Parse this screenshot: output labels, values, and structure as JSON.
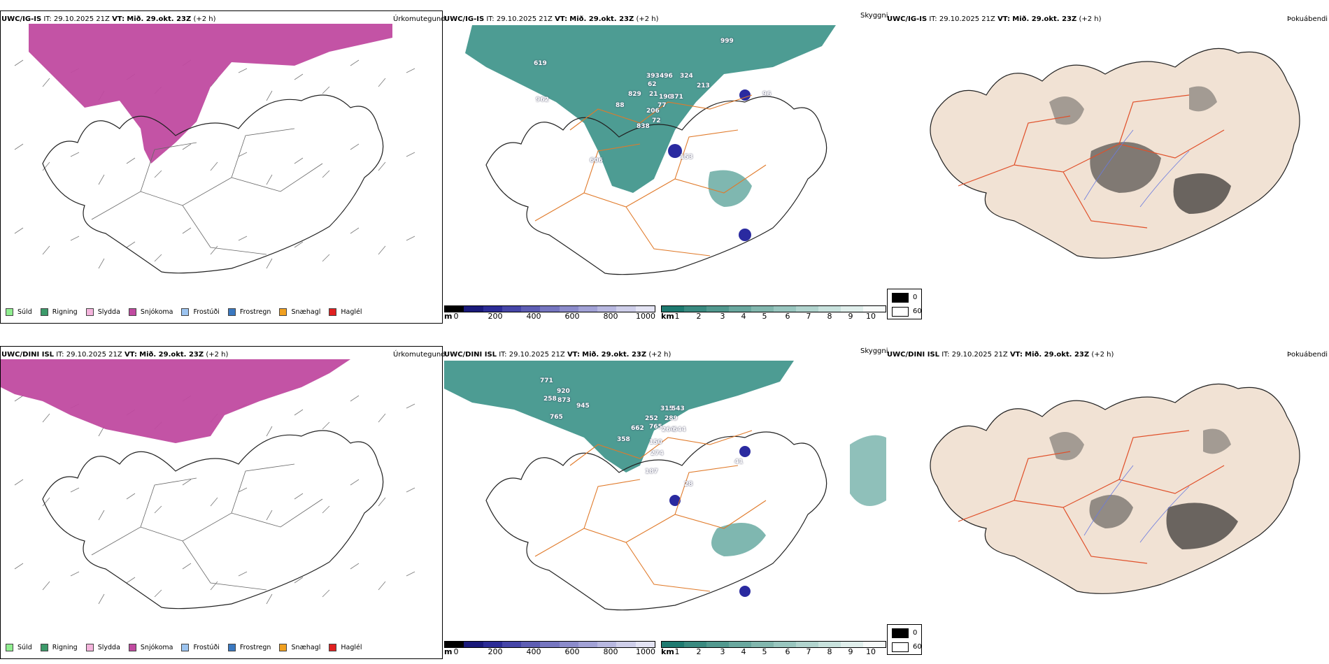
{
  "rows": [
    {
      "id": "ig",
      "model_label": "UWC/IG-IS",
      "it_label": "IT:",
      "it_value": "29.10.2025 21Z",
      "vt_label": "VT:",
      "vt_value": "Mið. 29.okt. 23Z",
      "lead": "(+2 h)",
      "precip_label": "Úrkomutegund",
      "vis_label": "Skyggni",
      "fog_label": "Þokuábendi",
      "vis_numbers": [
        "999",
        "619",
        "962",
        "829",
        "393",
        "496",
        "324",
        "62",
        "88",
        "21",
        "190",
        "371",
        "77",
        "206",
        "838",
        "72",
        "213",
        "96",
        "606",
        "153"
      ]
    },
    {
      "id": "dini",
      "model_label": "UWC/DINI ISL",
      "it_label": "IT:",
      "it_value": "29.10.2025 21Z",
      "vt_label": "VT:",
      "vt_value": "Mið. 29.okt. 23Z",
      "lead": "(+2 h)",
      "precip_label": "Úrkomutegund",
      "vis_label": "Skyggni",
      "fog_label": "Þokuábendi",
      "vis_numbers": [
        "771",
        "920",
        "258",
        "873",
        "945",
        "765",
        "315",
        "543",
        "252",
        "289",
        "662",
        "765",
        "264",
        "644",
        "358",
        "150",
        "274",
        "187",
        "28",
        "41"
      ]
    }
  ],
  "precip_legend": [
    {
      "label": "Súld",
      "color": "#90ee90"
    },
    {
      "label": "Rigning",
      "color": "#3c9a6a"
    },
    {
      "label": "Slydda",
      "color": "#f4b4dc"
    },
    {
      "label": "Snjókoma",
      "color": "#c04aa0"
    },
    {
      "label": "Frostúði",
      "color": "#9cc4f0"
    },
    {
      "label": "Frostregn",
      "color": "#3a78c0"
    },
    {
      "label": "Snæhagl",
      "color": "#f0a020"
    },
    {
      "label": "Haglél",
      "color": "#e02020"
    }
  ],
  "height_scale": {
    "unit": "m",
    "ticks": [
      "0",
      "200",
      "400",
      "600",
      "800",
      "1000"
    ],
    "colors": [
      "#000000",
      "#1a1a7a",
      "#2c2c96",
      "#4646a8",
      "#5e5eb4",
      "#7676c0",
      "#8c8ccb",
      "#a2a2d6",
      "#b8b8e0",
      "#cfcfea",
      "#e4e4f4"
    ]
  },
  "vis_scale": {
    "unit": "km",
    "ticks": [
      "1",
      "2",
      "3",
      "4",
      "5",
      "6",
      "7",
      "8",
      "9",
      "10"
    ],
    "colors": [
      "#1e7a70",
      "#3a8a80",
      "#52998f",
      "#6aa89f",
      "#82b7ae",
      "#99c6bf",
      "#b1d4ce",
      "#c8e2dd",
      "#e0efec",
      "#f6faf9"
    ]
  },
  "fog_scale": {
    "values": [
      "0",
      "60"
    ],
    "colors": [
      "#000000",
      "#ffffff"
    ]
  },
  "colors": {
    "snow": "#c04aa0",
    "vis_teal": "#2e8b80",
    "vis_blue": "#2a2aa0",
    "road": "#e07a2a",
    "land_beige": "#f1e2d4",
    "coast": "#222222"
  }
}
